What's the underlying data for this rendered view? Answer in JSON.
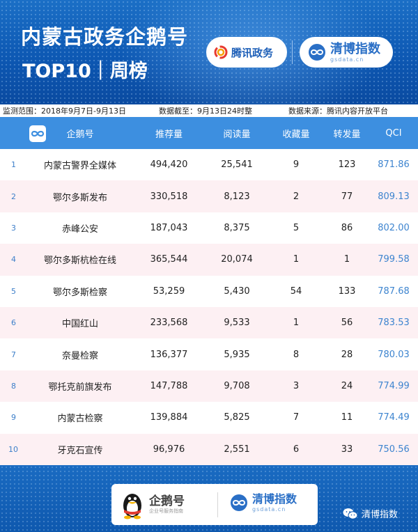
{
  "banner": {
    "title_line1": "内蒙古政务企鹅号",
    "title_line2": "TOP10｜周榜",
    "tencent_logo_text": "腾讯政务",
    "qingbo_logo_text": "清博指数",
    "qingbo_logo_sub": "gsdata.cn"
  },
  "info": {
    "range": "监测范围：2018年9月7日-9月13日",
    "cutoff": "数据截至：9月13日24时整",
    "source": "数据来源：腾讯内容开放平台"
  },
  "table": {
    "headers": {
      "name": "企鹅号",
      "recommend": "推荐量",
      "read": "阅读量",
      "favorite": "收藏量",
      "share": "转发量",
      "qci": "QCI"
    },
    "rows": [
      {
        "rank": "1",
        "name": "内蒙古警界全媒体",
        "recommend": "494,420",
        "read": "25,541",
        "favorite": "9",
        "share": "123",
        "qci": "871.86"
      },
      {
        "rank": "2",
        "name": "鄂尔多斯发布",
        "recommend": "330,518",
        "read": "8,123",
        "favorite": "2",
        "share": "77",
        "qci": "809.13"
      },
      {
        "rank": "3",
        "name": "赤峰公安",
        "recommend": "187,043",
        "read": "8,375",
        "favorite": "5",
        "share": "86",
        "qci": "802.00"
      },
      {
        "rank": "4",
        "name": "鄂尔多斯杭检在线",
        "recommend": "365,544",
        "read": "20,074",
        "favorite": "1",
        "share": "1",
        "qci": "799.58"
      },
      {
        "rank": "5",
        "name": "鄂尔多斯检察",
        "recommend": "53,259",
        "read": "5,430",
        "favorite": "54",
        "share": "133",
        "qci": "787.68"
      },
      {
        "rank": "6",
        "name": "中国红山",
        "recommend": "233,568",
        "read": "9,533",
        "favorite": "1",
        "share": "56",
        "qci": "783.53"
      },
      {
        "rank": "7",
        "name": "奈曼检察",
        "recommend": "136,377",
        "read": "5,935",
        "favorite": "8",
        "share": "28",
        "qci": "780.03"
      },
      {
        "rank": "8",
        "name": "鄂托克前旗发布",
        "recommend": "147,788",
        "read": "9,708",
        "favorite": "3",
        "share": "24",
        "qci": "774.99"
      },
      {
        "rank": "9",
        "name": "内蒙古检察",
        "recommend": "139,884",
        "read": "5,825",
        "favorite": "7",
        "share": "11",
        "qci": "774.49"
      },
      {
        "rank": "10",
        "name": "牙克石宣传",
        "recommend": "96,976",
        "read": "2,551",
        "favorite": "6",
        "share": "33",
        "qci": "750.56"
      }
    ]
  },
  "footer": {
    "qeh_text": "企鹅号",
    "qeh_sub": "企业号服务指南",
    "qingbo_text": "清博指数",
    "qingbo_sub": "gsdata.cn",
    "wechat_account": "清博指数"
  },
  "colors": {
    "banner_blue": "#0d58b3",
    "header_blue": "#3d8fe0",
    "alt_row_pink": "#fdf0f3",
    "qci_blue": "#3d84cf"
  }
}
